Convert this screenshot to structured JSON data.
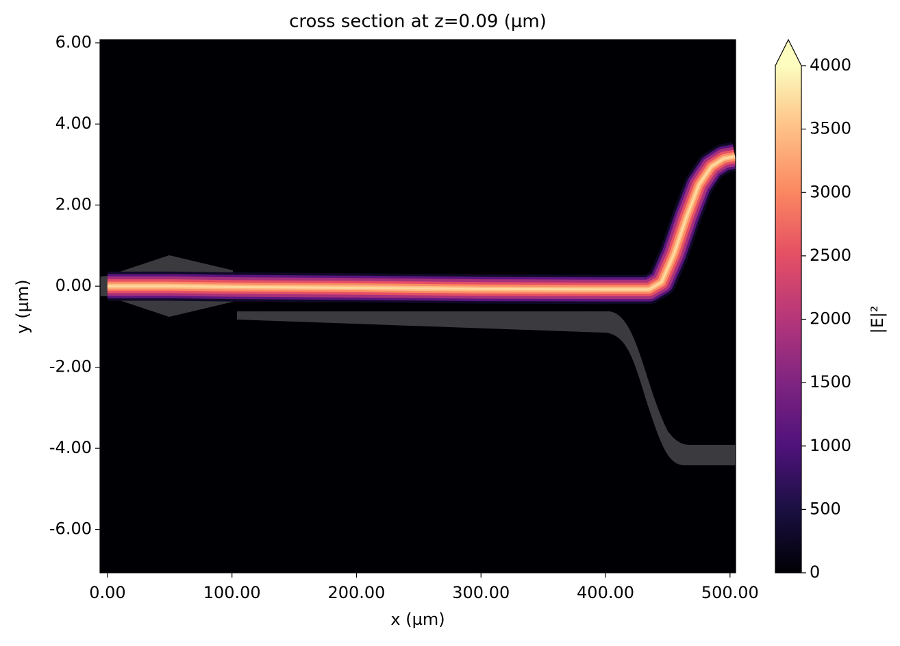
{
  "chart_data": {
    "type": "heatmap",
    "title": "cross section at z=0.09 (µm)",
    "xlabel": "x (µm)",
    "ylabel": "y (µm)",
    "xlim": [
      -6,
      504.5
    ],
    "ylim": [
      -7.07,
      6.08
    ],
    "xticks": [
      {
        "value": 0,
        "label": "0.00"
      },
      {
        "value": 100,
        "label": "100.00"
      },
      {
        "value": 200,
        "label": "200.00"
      },
      {
        "value": 300,
        "label": "300.00"
      },
      {
        "value": 400,
        "label": "400.00"
      },
      {
        "value": 500,
        "label": "500.00"
      }
    ],
    "yticks": [
      {
        "value": 6,
        "label": "6.00"
      },
      {
        "value": 4,
        "label": "4.00"
      },
      {
        "value": 2,
        "label": "2.00"
      },
      {
        "value": 0,
        "label": "0.00"
      },
      {
        "value": -2,
        "label": "-2.00"
      },
      {
        "value": -4,
        "label": "-4.00"
      },
      {
        "value": -6,
        "label": "-6.00"
      }
    ],
    "colormap": "magma",
    "colorbar_label": "|E|²",
    "clim": [
      0,
      4000
    ],
    "colorbar_ticks": [
      0,
      500,
      1000,
      1500,
      2000,
      2500,
      3000,
      3500,
      4000
    ],
    "x": [
      0,
      50,
      100,
      200,
      300,
      400,
      435,
      445,
      455,
      465,
      475,
      485,
      495,
      504
    ],
    "y": [
      0,
      0,
      -0.02,
      -0.04,
      -0.07,
      -0.08,
      -0.08,
      0.1,
      0.8,
      1.7,
      2.5,
      2.95,
      3.15,
      3.2
    ],
    "intensity": [
      3900,
      3800,
      3700,
      3600,
      3600,
      3600,
      3600,
      3600,
      3700,
      3700,
      3700,
      3800,
      3800,
      3800
    ]
  }
}
